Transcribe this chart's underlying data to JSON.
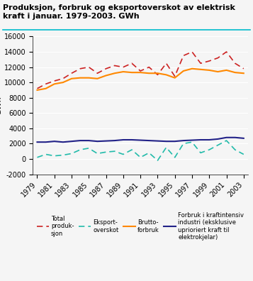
{
  "title": "Produksjon, forbruk og eksportoverskot av elektrisk kraft i januar. 1979-2003. GWh",
  "ylabel": "GWh",
  "years": [
    1979,
    1980,
    1981,
    1982,
    1983,
    1984,
    1985,
    1986,
    1987,
    1988,
    1989,
    1990,
    1991,
    1992,
    1993,
    1994,
    1995,
    1996,
    1997,
    1998,
    1999,
    2000,
    2001,
    2002,
    2003
  ],
  "total_produksjon": [
    9200,
    9800,
    10200,
    10500,
    11200,
    11800,
    12000,
    11200,
    11800,
    12200,
    12000,
    12500,
    11500,
    12000,
    11000,
    12500,
    10800,
    13500,
    14000,
    12500,
    12800,
    13200,
    14000,
    12500,
    11800
  ],
  "eksport_overskot": [
    200,
    600,
    400,
    500,
    700,
    1200,
    1400,
    700,
    900,
    1000,
    600,
    1200,
    200,
    800,
    -200,
    1500,
    200,
    2000,
    2200,
    800,
    1200,
    1800,
    2400,
    1200,
    600
  ],
  "brutto_forbruk": [
    9000,
    9200,
    9800,
    10000,
    10500,
    10600,
    10600,
    10500,
    10900,
    11200,
    11400,
    11300,
    11300,
    11200,
    11200,
    11000,
    10600,
    11500,
    11800,
    11700,
    11600,
    11400,
    11600,
    11300,
    11200
  ],
  "kraftintensiv_industri": [
    2200,
    2200,
    2300,
    2200,
    2300,
    2400,
    2400,
    2300,
    2350,
    2400,
    2500,
    2500,
    2450,
    2400,
    2350,
    2300,
    2300,
    2400,
    2450,
    2500,
    2500,
    2600,
    2800,
    2800,
    2700
  ],
  "ylim": [
    -2000,
    16000
  ],
  "yticks": [
    -2000,
    0,
    2000,
    4000,
    6000,
    8000,
    10000,
    12000,
    14000,
    16000
  ],
  "color_produksjon": "#cc2222",
  "color_eksport": "#22bbaa",
  "color_brutto": "#ff8800",
  "color_kraftintensiv": "#222288",
  "bg_color": "#f5f5f5",
  "grid_color": "#ffffff"
}
